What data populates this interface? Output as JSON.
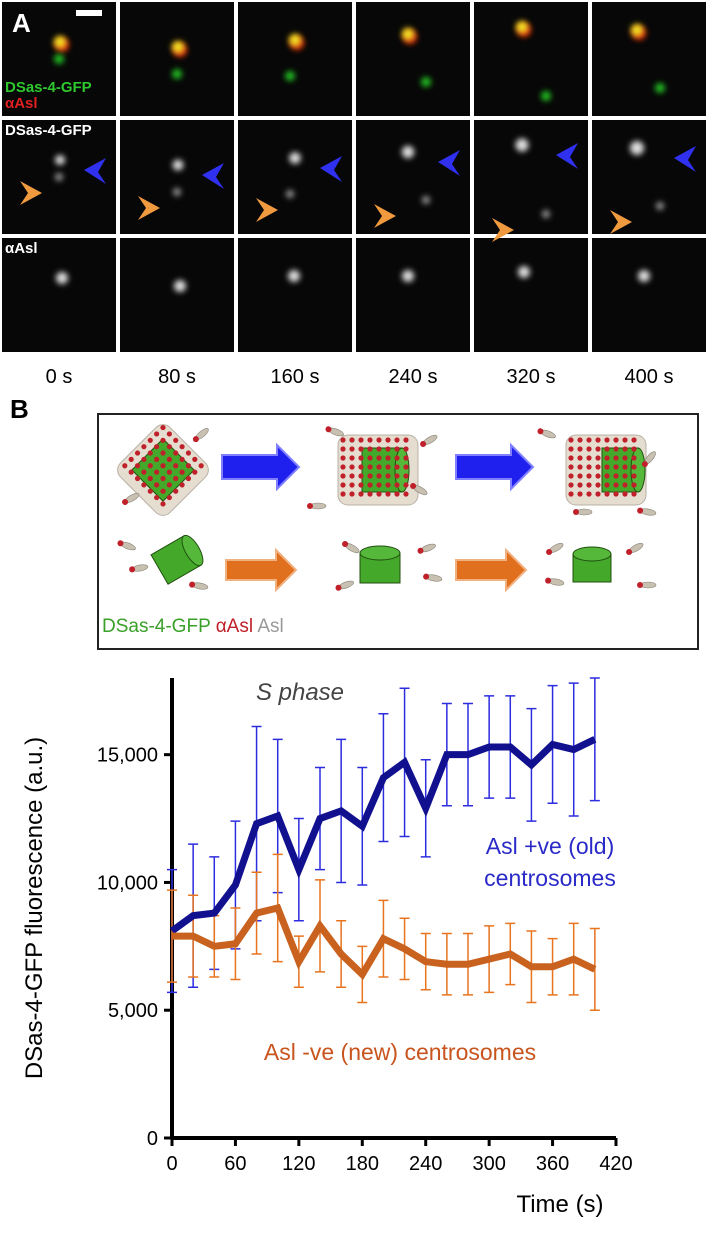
{
  "panel_a": {
    "label": "A",
    "row_labels": [
      [
        "DSas-4-GFP",
        "αAsl"
      ],
      [
        "DSas-4-GFP"
      ],
      [
        "αAsl"
      ]
    ],
    "times": [
      "0 s",
      "80 s",
      "160 s",
      "240 s",
      "320 s",
      "400 s"
    ]
  },
  "panel_b": {
    "label": "B",
    "legend": [
      "DSas-4-GFP",
      "αAsl",
      "Asl"
    ]
  },
  "chart_data": {
    "type": "line",
    "title": "S phase",
    "x_label": "Time (s)",
    "y_label": "DSas-4-GFP fluorescence (a.u.)",
    "x": [
      0,
      20,
      40,
      60,
      80,
      100,
      120,
      140,
      160,
      180,
      200,
      220,
      240,
      260,
      280,
      300,
      320,
      340,
      360,
      380,
      400
    ],
    "series": [
      {
        "name": "Asl +ve (old) centrosomes",
        "color": "#111190",
        "error_color": "#2d2de0",
        "label_color": "#2a2ac8",
        "values": [
          8100,
          8700,
          8800,
          9900,
          12300,
          12600,
          10500,
          12500,
          12800,
          12200,
          14100,
          14700,
          12900,
          15000,
          15000,
          15300,
          15300,
          14600,
          15400,
          15200,
          15600
        ],
        "errors": [
          2400,
          2800,
          2200,
          2500,
          3800,
          3000,
          2000,
          2000,
          2800,
          2300,
          2500,
          2900,
          1900,
          2000,
          2000,
          2000,
          2000,
          2200,
          2300,
          2600,
          2400
        ]
      },
      {
        "name": "Asl -ve (new) centrosomes",
        "color": "#c8621e",
        "error_color": "#e8741e",
        "label_color": "#c8541e",
        "values": [
          7900,
          7900,
          7500,
          7600,
          8800,
          9000,
          6900,
          8300,
          7200,
          6400,
          7800,
          7400,
          6900,
          6800,
          6800,
          7000,
          7200,
          6700,
          6700,
          7000,
          6600
        ],
        "errors": [
          1800,
          1600,
          1200,
          1400,
          1600,
          2100,
          1000,
          1800,
          1300,
          1100,
          1500,
          1200,
          1100,
          1200,
          1200,
          1300,
          1200,
          1400,
          1100,
          1400,
          1600
        ]
      }
    ],
    "xlim": [
      0,
      420
    ],
    "xticks": [
      0,
      60,
      120,
      180,
      240,
      300,
      360,
      420
    ],
    "ylim": [
      0,
      18000
    ],
    "yticks": [
      0,
      {
        "value": 5000,
        "label": "5,000"
      },
      {
        "value": 10000,
        "label": "10,000"
      },
      {
        "value": 15000,
        "label": "15,000"
      }
    ]
  }
}
